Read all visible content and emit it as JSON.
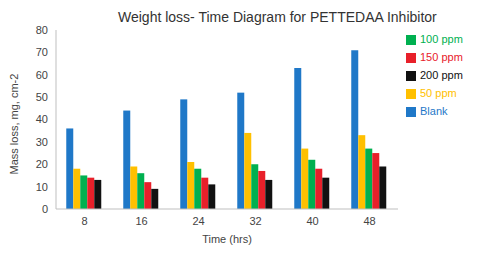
{
  "chart_data": {
    "type": "bar",
    "title": "Weight loss- Time Diagram for PETTEDAA Inhibitor",
    "x_label": "Time (hrs)",
    "y_label": "Mass loss, mg, cm-2",
    "categories": [
      "8",
      "16",
      "24",
      "32",
      "40",
      "48"
    ],
    "series": [
      {
        "name": "Blank",
        "color": "#1f78c8",
        "values": [
          36,
          44,
          49,
          52,
          63,
          71
        ]
      },
      {
        "name": "50 ppm",
        "color": "#ffc000",
        "values": [
          18,
          19,
          21,
          34,
          27,
          33
        ]
      },
      {
        "name": "100 ppm",
        "color": "#00b050",
        "values": [
          15,
          16,
          18,
          20,
          22,
          27
        ]
      },
      {
        "name": "150 ppm",
        "color": "#e8202a",
        "values": [
          14,
          12,
          14,
          17,
          18,
          25
        ]
      },
      {
        "name": "200 ppm",
        "color": "#111111",
        "values": [
          13,
          9,
          11,
          13,
          14,
          19
        ]
      }
    ],
    "ylim": [
      0,
      80
    ],
    "yticks": [
      0,
      10,
      20,
      30,
      40,
      50,
      60,
      70,
      80
    ],
    "grid": false,
    "legend": "right"
  }
}
